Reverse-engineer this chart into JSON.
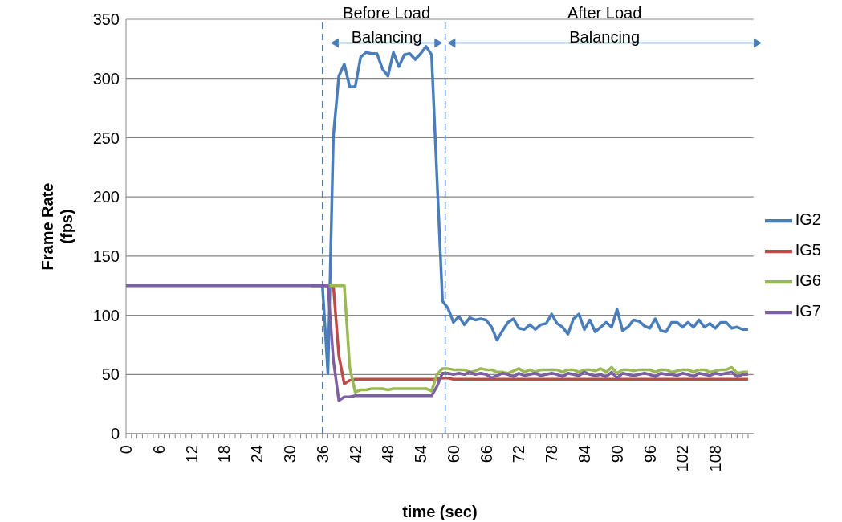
{
  "chart_data": {
    "type": "line",
    "xlabel": "time (sec)",
    "ylabel": "Frame Rate (fps)",
    "annotations": [
      "Before Load Balancing",
      "After Load Balancing"
    ],
    "x": [
      0,
      1,
      2,
      3,
      4,
      5,
      6,
      7,
      8,
      9,
      10,
      11,
      12,
      13,
      14,
      15,
      16,
      17,
      18,
      19,
      20,
      21,
      22,
      23,
      24,
      25,
      26,
      27,
      28,
      29,
      30,
      31,
      32,
      33,
      34,
      35,
      36,
      37,
      38,
      39,
      40,
      41,
      42,
      43,
      44,
      45,
      46,
      47,
      48,
      49,
      50,
      51,
      52,
      53,
      54,
      55,
      56,
      57,
      58,
      59,
      60,
      61,
      62,
      63,
      64,
      65,
      66,
      67,
      68,
      69,
      70,
      71,
      72,
      73,
      74,
      75,
      76,
      77,
      78,
      79,
      80,
      81,
      82,
      83,
      84,
      85,
      86,
      87,
      88,
      89,
      90,
      91,
      92,
      93,
      94,
      95,
      96,
      97,
      98,
      99,
      100,
      101,
      102,
      103,
      104,
      105,
      106,
      107,
      108,
      109,
      110,
      111,
      112,
      113,
      114
    ],
    "series": [
      {
        "name": "IG2",
        "color": "#4a7ebb",
        "values": [
          null,
          null,
          null,
          null,
          null,
          null,
          null,
          null,
          null,
          null,
          null,
          null,
          null,
          null,
          null,
          null,
          null,
          null,
          null,
          null,
          null,
          null,
          null,
          null,
          null,
          null,
          null,
          null,
          null,
          null,
          null,
          null,
          null,
          null,
          125,
          125,
          125,
          51,
          251,
          302,
          312,
          293,
          293,
          318,
          322,
          321,
          321,
          308,
          302,
          322,
          310,
          320,
          321,
          316,
          321,
          327,
          320,
          215,
          112,
          106,
          94,
          99,
          92,
          98,
          96,
          97,
          96,
          90,
          79,
          87,
          94,
          97,
          89,
          88,
          92,
          88,
          92,
          93,
          101,
          93,
          90,
          84,
          97,
          101,
          88,
          96,
          86,
          90,
          94,
          90,
          105,
          87,
          90,
          96,
          95,
          91,
          89,
          97,
          87,
          86,
          94,
          94,
          90,
          94,
          90,
          96,
          90,
          93,
          89,
          94,
          94,
          89,
          90,
          88,
          88
        ]
      },
      {
        "name": "IG5",
        "color": "#be4b48",
        "values": [
          null,
          null,
          null,
          null,
          null,
          null,
          null,
          null,
          null,
          null,
          null,
          null,
          null,
          null,
          null,
          null,
          null,
          null,
          null,
          null,
          null,
          null,
          null,
          null,
          null,
          null,
          null,
          null,
          null,
          null,
          null,
          null,
          null,
          null,
          null,
          null,
          125,
          125,
          125,
          66,
          42,
          45,
          46,
          46,
          46,
          46,
          46,
          46,
          46,
          46,
          46,
          46,
          46,
          46,
          46,
          46,
          46,
          46,
          47,
          47,
          46,
          46,
          46,
          46,
          46,
          46,
          46,
          46,
          46,
          46,
          46,
          46,
          46,
          46,
          46,
          46,
          46,
          46,
          46,
          46,
          46,
          46,
          46,
          46,
          46,
          46,
          46,
          46,
          46,
          46,
          46,
          46,
          46,
          46,
          46,
          46,
          46,
          46,
          46,
          46,
          46,
          46,
          46,
          46,
          46,
          46,
          46,
          46,
          46,
          46,
          46,
          46,
          46,
          46,
          46
        ]
      },
      {
        "name": "IG6",
        "color": "#98b954",
        "values": [
          null,
          null,
          null,
          null,
          null,
          null,
          null,
          null,
          null,
          null,
          null,
          null,
          null,
          null,
          null,
          null,
          null,
          null,
          null,
          null,
          null,
          null,
          null,
          null,
          null,
          null,
          null,
          null,
          null,
          null,
          null,
          null,
          null,
          null,
          null,
          null,
          125,
          125,
          125,
          125,
          125,
          56,
          35,
          37,
          37,
          38,
          38,
          38,
          37,
          38,
          38,
          38,
          38,
          38,
          38,
          38,
          36,
          50,
          55,
          55,
          54,
          54,
          54,
          52,
          53,
          55,
          54,
          54,
          52,
          52,
          51,
          53,
          55,
          52,
          54,
          52,
          54,
          54,
          54,
          54,
          52,
          54,
          54,
          52,
          54,
          54,
          53,
          55,
          52,
          56,
          51,
          54,
          54,
          53,
          54,
          54,
          54,
          52,
          54,
          54,
          52,
          53,
          54,
          54,
          52,
          54,
          54,
          52,
          53,
          54,
          54,
          56,
          51,
          52,
          52
        ]
      },
      {
        "name": "IG7",
        "color": "#7d60a0",
        "values": [
          125,
          125,
          125,
          125,
          125,
          125,
          125,
          125,
          125,
          125,
          125,
          125,
          125,
          125,
          125,
          125,
          125,
          125,
          125,
          125,
          125,
          125,
          125,
          125,
          125,
          125,
          125,
          125,
          125,
          125,
          125,
          125,
          125,
          125,
          125,
          125,
          125,
          125,
          62,
          28,
          31,
          31,
          32,
          32,
          32,
          32,
          32,
          32,
          32,
          32,
          32,
          32,
          32,
          32,
          32,
          32,
          32,
          40,
          51,
          51,
          50,
          51,
          50,
          52,
          50,
          51,
          50,
          47,
          49,
          51,
          50,
          48,
          51,
          49,
          50,
          51,
          49,
          50,
          51,
          50,
          48,
          51,
          50,
          49,
          52,
          50,
          49,
          50,
          48,
          52,
          47,
          51,
          50,
          49,
          50,
          51,
          50,
          48,
          51,
          50,
          50,
          49,
          51,
          50,
          48,
          51,
          50,
          49,
          51,
          50,
          51,
          52,
          48,
          50,
          50
        ]
      }
    ],
    "xlim": [
      0,
      115
    ],
    "xticks": [
      0,
      {
        "value": 1,
        "label": null
      },
      {
        "value": 2,
        "label": null
      },
      {
        "value": 3,
        "label": null
      },
      {
        "value": 4,
        "label": null
      },
      {
        "value": 5,
        "label": null
      },
      6,
      {
        "value": 7,
        "label": null
      },
      {
        "value": 8,
        "label": null
      },
      {
        "value": 9,
        "label": null
      },
      {
        "value": 10,
        "label": null
      },
      {
        "value": 11,
        "label": null
      },
      12,
      {
        "value": 13,
        "label": null
      },
      {
        "value": 14,
        "label": null
      },
      {
        "value": 15,
        "label": null
      },
      {
        "value": 16,
        "label": null
      },
      {
        "value": 17,
        "label": null
      },
      18,
      {
        "value": 19,
        "label": null
      },
      {
        "value": 20,
        "label": null
      },
      {
        "value": 21,
        "label": null
      },
      {
        "value": 22,
        "label": null
      },
      {
        "value": 23,
        "label": null
      },
      24,
      {
        "value": 25,
        "label": null
      },
      {
        "value": 26,
        "label": null
      },
      {
        "value": 27,
        "label": null
      },
      {
        "value": 28,
        "label": null
      },
      {
        "value": 29,
        "label": null
      },
      30,
      {
        "value": 31,
        "label": null
      },
      {
        "value": 32,
        "label": null
      },
      {
        "value": 33,
        "label": null
      },
      {
        "value": 34,
        "label": null
      },
      {
        "value": 35,
        "label": null
      },
      36,
      {
        "value": 37,
        "label": null
      },
      {
        "value": 38,
        "label": null
      },
      {
        "value": 39,
        "label": null
      },
      {
        "value": 40,
        "label": null
      },
      {
        "value": 41,
        "label": null
      },
      42,
      {
        "value": 43,
        "label": null
      },
      {
        "value": 44,
        "label": null
      },
      {
        "value": 45,
        "label": null
      },
      {
        "value": 46,
        "label": null
      },
      {
        "value": 47,
        "label": null
      },
      48,
      {
        "value": 49,
        "label": null
      },
      {
        "value": 50,
        "label": null
      },
      {
        "value": 51,
        "label": null
      },
      {
        "value": 52,
        "label": null
      },
      {
        "value": 53,
        "label": null
      },
      54,
      {
        "value": 55,
        "label": null
      },
      {
        "value": 56,
        "label": null
      },
      {
        "value": 57,
        "label": null
      },
      {
        "value": 58,
        "label": null
      },
      {
        "value": 59,
        "label": null
      },
      60,
      {
        "value": 61,
        "label": null
      },
      {
        "value": 62,
        "label": null
      },
      {
        "value": 63,
        "label": null
      },
      {
        "value": 64,
        "label": null
      },
      {
        "value": 65,
        "label": null
      },
      66,
      {
        "value": 67,
        "label": null
      },
      {
        "value": 68,
        "label": null
      },
      {
        "value": 69,
        "label": null
      },
      {
        "value": 70,
        "label": null
      },
      {
        "value": 71,
        "label": null
      },
      72,
      {
        "value": 73,
        "label": null
      },
      {
        "value": 74,
        "label": null
      },
      {
        "value": 75,
        "label": null
      },
      {
        "value": 76,
        "label": null
      },
      {
        "value": 77,
        "label": null
      },
      78,
      {
        "value": 79,
        "label": null
      },
      {
        "value": 80,
        "label": null
      },
      {
        "value": 81,
        "label": null
      },
      {
        "value": 82,
        "label": null
      },
      {
        "value": 83,
        "label": null
      },
      84,
      {
        "value": 85,
        "label": null
      },
      {
        "value": 86,
        "label": null
      },
      {
        "value": 87,
        "label": null
      },
      {
        "value": 88,
        "label": null
      },
      {
        "value": 89,
        "label": null
      },
      90,
      {
        "value": 91,
        "label": null
      },
      {
        "value": 92,
        "label": null
      },
      {
        "value": 93,
        "label": null
      },
      {
        "value": 94,
        "label": null
      },
      {
        "value": 95,
        "label": null
      },
      96,
      {
        "value": 97,
        "label": null
      },
      {
        "value": 98,
        "label": null
      },
      {
        "value": 99,
        "label": null
      },
      {
        "value": 100,
        "label": null
      },
      {
        "value": 101,
        "label": null
      },
      102,
      {
        "value": 103,
        "label": null
      },
      {
        "value": 104,
        "label": null
      },
      {
        "value": 105,
        "label": null
      },
      {
        "value": 106,
        "label": null
      },
      {
        "value": 107,
        "label": null
      },
      108,
      {
        "value": 109,
        "label": null
      },
      {
        "value": 110,
        "label": null
      },
      {
        "value": 111,
        "label": null
      },
      {
        "value": 112,
        "label": null
      },
      {
        "value": 113,
        "label": null
      },
      {
        "value": 114,
        "label": null
      }
    ],
    "ylim": [
      0,
      350
    ],
    "yticks": [
      0,
      50,
      100,
      150,
      200,
      250,
      300,
      350
    ],
    "grid": "y",
    "legend": "right",
    "marker": "none",
    "line_style": "solid",
    "ref_lines": [
      {
        "axis": "x",
        "value": 36,
        "color": "#4a7ebb",
        "line_style": "dashed"
      },
      {
        "axis": "x",
        "value": 58.5,
        "color": "#4a7ebb",
        "line_style": "dashed"
      }
    ]
  }
}
